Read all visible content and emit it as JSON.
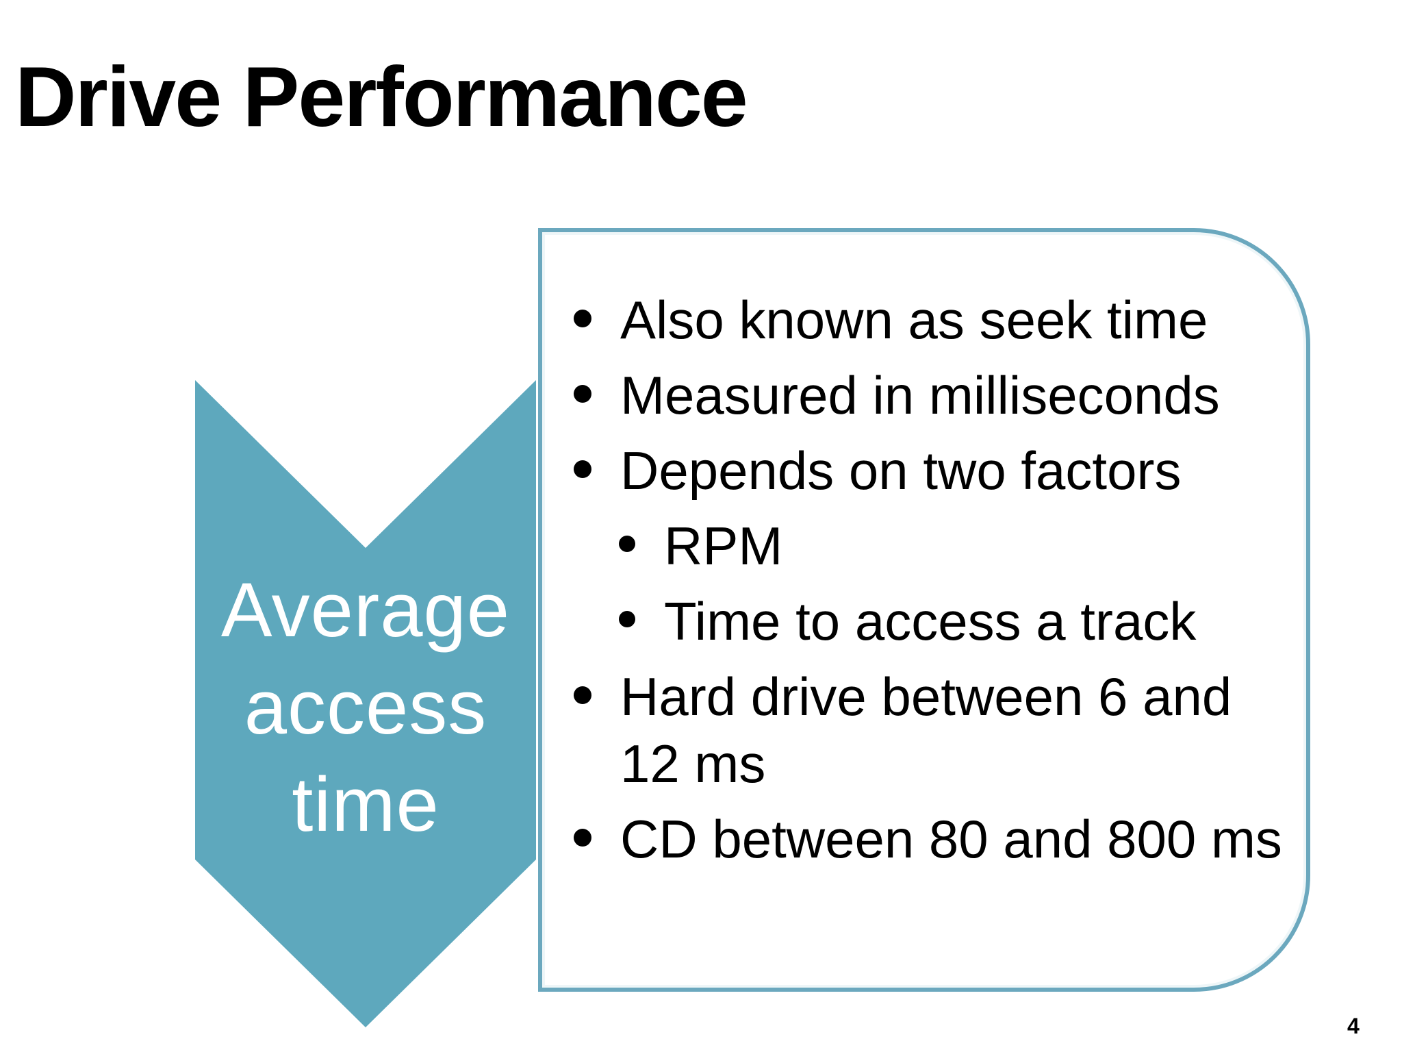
{
  "slide": {
    "title": "Drive Performance",
    "chevron_label_lines": [
      "Average",
      "access",
      "time"
    ],
    "bullets": [
      {
        "text": "Also known as seek time",
        "level": 1
      },
      {
        "text": "Measured in milliseconds",
        "level": 1
      },
      {
        "text": "Depends on two factors",
        "level": 1
      },
      {
        "text": "RPM",
        "level": 2
      },
      {
        "text": "Time to access a track",
        "level": 2
      },
      {
        "text": "Hard drive between 6 and 12 ms",
        "level": 1
      },
      {
        "text": "CD between 80 and 800 ms",
        "level": 1
      }
    ],
    "page_number": "4"
  },
  "colors": {
    "chevron_fill": "#5ea8bd",
    "box_border": "#6ba8be",
    "text": "#000000",
    "chevron_text": "#ffffff"
  }
}
